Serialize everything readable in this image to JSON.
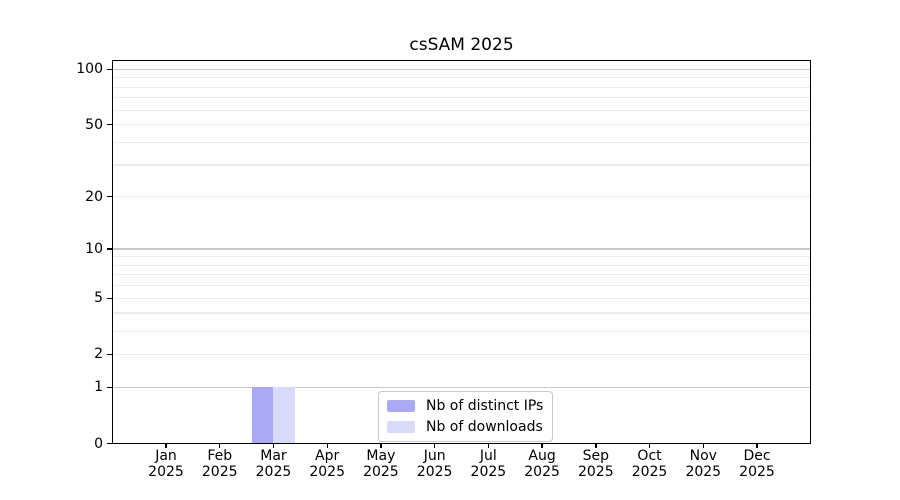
{
  "chart_data": {
    "type": "bar",
    "title": "csSAM 2025",
    "categories": [
      "Jan",
      "Feb",
      "Mar",
      "Apr",
      "May",
      "Jun",
      "Jul",
      "Aug",
      "Sep",
      "Oct",
      "Nov",
      "Dec"
    ],
    "year": "2025",
    "series": [
      {
        "name": "Nb of distinct IPs",
        "color": "#a9a9f5",
        "values": [
          0,
          0,
          1,
          0,
          0,
          0,
          0,
          0,
          0,
          0,
          0,
          0
        ]
      },
      {
        "name": "Nb of downloads",
        "color": "#d9d9f9",
        "values": [
          0,
          0,
          1,
          0,
          0,
          0,
          0,
          0,
          0,
          0,
          0,
          0
        ]
      }
    ],
    "y_axis": {
      "scale": "log1p",
      "ticks": [
        0,
        1,
        2,
        5,
        10,
        20,
        50,
        100
      ],
      "max": 112,
      "major_gridlines": [
        1,
        10,
        100
      ],
      "minor_gridlines": [
        2,
        3,
        4,
        5,
        6,
        7,
        8,
        9,
        20,
        30,
        40,
        50,
        60,
        70,
        80,
        90
      ]
    },
    "x_axis": {
      "label_lines": 2
    },
    "grid": "horizontal log gridlines",
    "legend_position": "lower center",
    "colors": {
      "axis": "#000000",
      "grid_minor": "#ebebeb",
      "grid_major": "#c9c9c9"
    }
  }
}
